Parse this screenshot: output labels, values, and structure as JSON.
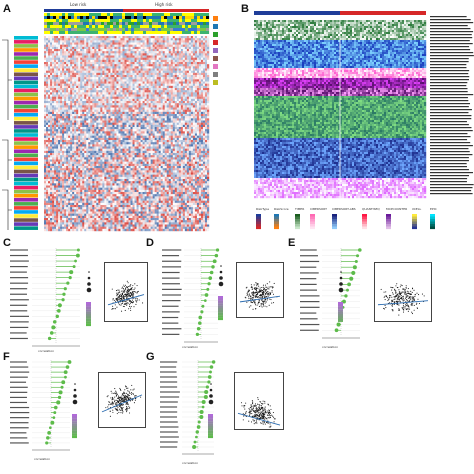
{
  "figure": {
    "panel_labels": [
      "A",
      "B",
      "C",
      "D",
      "E",
      "F",
      "G"
    ],
    "panelA": {
      "group_labels": [
        "Low risk",
        "High risk"
      ]
    },
    "panelB": {
      "bottom_legend_titles": [
        "RiskType",
        "RiskScore",
        "TIMER",
        "CIBERSORT",
        "CIBERSORT-ABS",
        "QUANTISEQ",
        "MCPCOUNTER",
        "XCELL",
        "EPIC"
      ]
    },
    "lollipop_axis_label": "correlation",
    "scatter_panels": [
      "C",
      "D",
      "E",
      "F",
      "G"
    ]
  },
  "colors": {
    "heat_red": "#d73027",
    "heat_blue": "#2c5aa0",
    "high_risk_bar": "#d62728",
    "low_risk_bar": "#1f3d99",
    "lollipop_green": "#5dbb4a",
    "scatter_point": "#1a1a1a",
    "fit_line": "#2b6cb0"
  }
}
